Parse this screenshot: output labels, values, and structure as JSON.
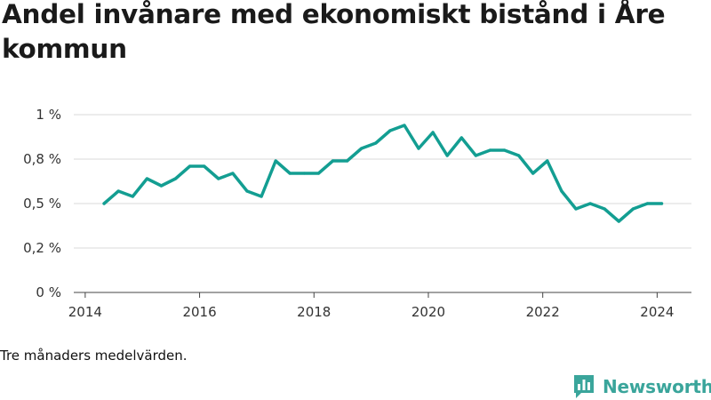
{
  "title": "Andel invånare med ekonomiskt bistånd i Åre kommun",
  "caption": "Tre månaders medelvärden.",
  "brand": {
    "name": "Newsworthy",
    "logo_icon": "bar-chart-speech-bubble-icon",
    "color": "#3aa59b"
  },
  "chart_data": {
    "type": "line",
    "title": "Andel invånare med ekonomiskt bistånd i Åre kommun",
    "xlabel": "",
    "ylabel": "",
    "xlim": [
      2013.8,
      2024.6
    ],
    "ylim": [
      0,
      1.0
    ],
    "x_ticks": [
      2014,
      2016,
      2018,
      2020,
      2022,
      2024
    ],
    "x_tick_labels": [
      "2014",
      "2016",
      "2018",
      "2020",
      "2022",
      "2024"
    ],
    "y_ticks": [
      0,
      0.25,
      0.5,
      0.75,
      1.0
    ],
    "y_tick_labels": [
      "0 %",
      "0,2 %",
      "0,5 %",
      "0,8 %",
      "1 %"
    ],
    "grid": true,
    "series": [
      {
        "color": "#139e92",
        "x": [
          2014.33,
          2014.58,
          2014.83,
          2015.08,
          2015.33,
          2015.58,
          2015.83,
          2016.08,
          2016.33,
          2016.58,
          2016.83,
          2017.08,
          2017.33,
          2017.58,
          2017.83,
          2018.08,
          2018.33,
          2018.58,
          2018.83,
          2019.08,
          2019.33,
          2019.58,
          2019.83,
          2020.08,
          2020.33,
          2020.58,
          2020.83,
          2021.08,
          2021.33,
          2021.58,
          2021.83,
          2022.08,
          2022.33,
          2022.58,
          2022.83,
          2023.08,
          2023.33,
          2023.58,
          2023.83,
          2024.08
        ],
        "y": [
          0.5,
          0.57,
          0.54,
          0.64,
          0.6,
          0.64,
          0.71,
          0.71,
          0.64,
          0.67,
          0.57,
          0.54,
          0.74,
          0.67,
          0.67,
          0.67,
          0.74,
          0.74,
          0.81,
          0.84,
          0.91,
          0.94,
          0.81,
          0.9,
          0.77,
          0.87,
          0.77,
          0.8,
          0.8,
          0.77,
          0.67,
          0.74,
          0.57,
          0.47,
          0.5,
          0.47,
          0.4,
          0.47,
          0.5,
          0.5
        ]
      }
    ]
  }
}
